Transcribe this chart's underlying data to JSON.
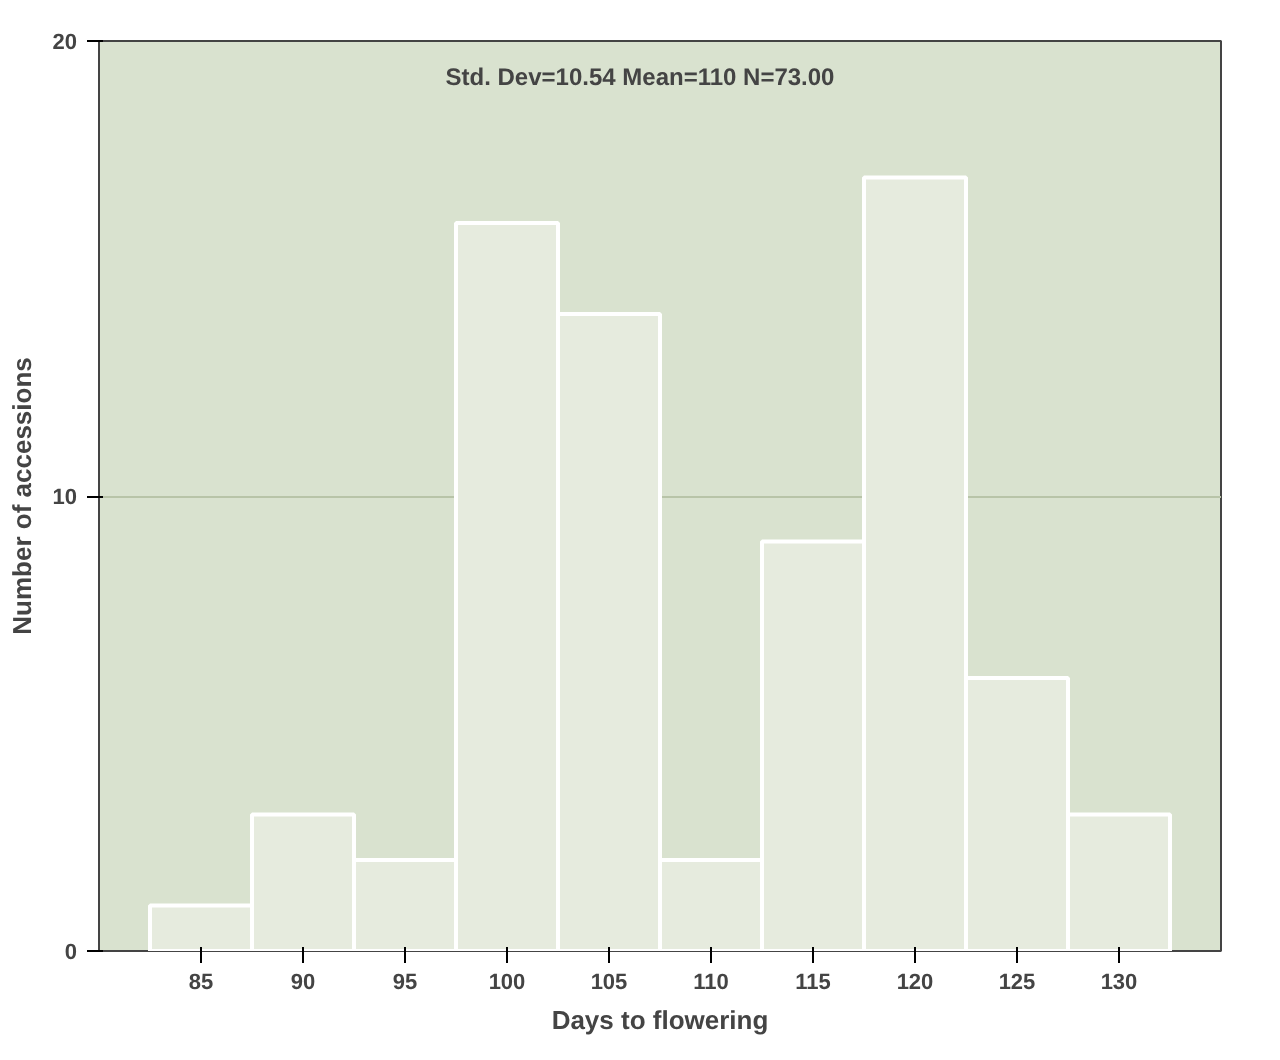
{
  "chart_data": {
    "type": "histogram",
    "xlabel": "Days to flowering",
    "ylabel": "Number of accessions",
    "bins": [
      82.5,
      87.5,
      92.5,
      97.5,
      102.5,
      107.5,
      112.5,
      117.5,
      122.5,
      127.5,
      132.5
    ],
    "values": [
      1,
      3,
      2,
      16,
      14,
      2,
      9,
      17,
      6,
      3
    ],
    "color": "#e6ebde",
    "xlim": [
      80,
      135
    ],
    "xticks": [
      85,
      90,
      95,
      100,
      105,
      110,
      115,
      120,
      125,
      130
    ],
    "ylim": [
      0,
      20
    ],
    "yticks": [
      0,
      10,
      20
    ],
    "grid": "y",
    "annotations": [
      "Std. Dev=10.54    Mean=110    N=73.00"
    ]
  }
}
